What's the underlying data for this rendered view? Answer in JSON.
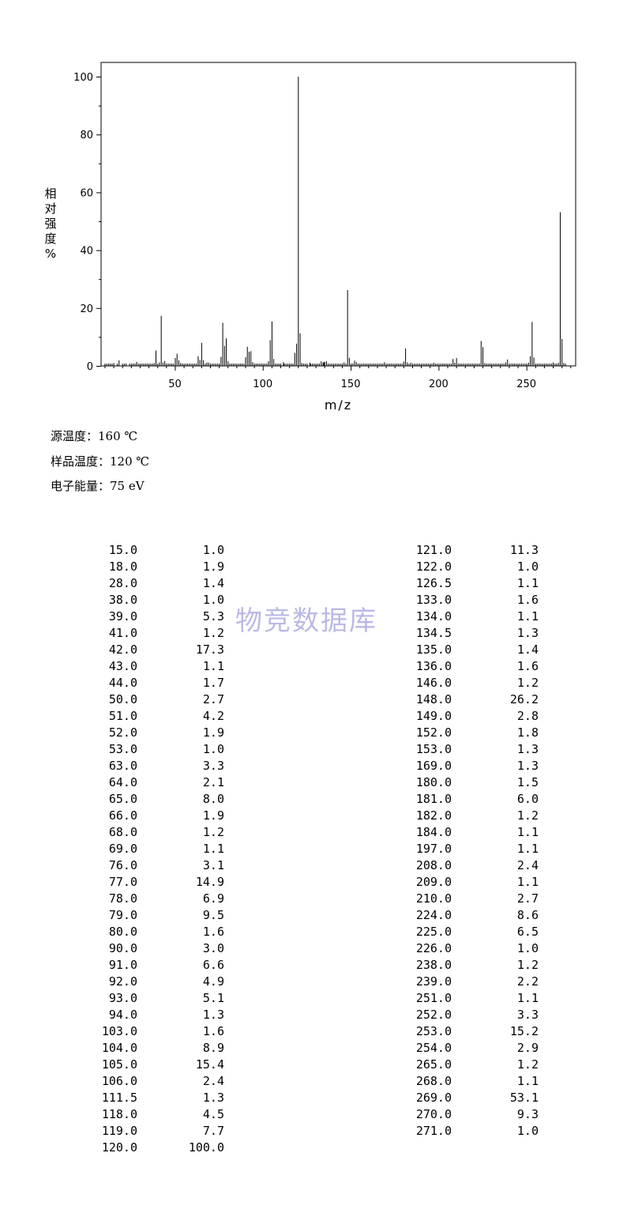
{
  "chart_data": {
    "type": "bar",
    "xlabel": "m/z",
    "ylabel": "相对强度%",
    "xlim": [
      8,
      278
    ],
    "ylim": [
      0,
      100
    ],
    "x_ticks": [
      50,
      100,
      150,
      200,
      250
    ],
    "y_ticks": [
      0,
      20,
      40,
      60,
      80,
      100
    ],
    "x_ticks_text": [
      "50",
      "100",
      "150",
      "200",
      "250"
    ],
    "y_ticks_text": [
      "0",
      "20",
      "40",
      "60",
      "80",
      "100"
    ],
    "grid": false,
    "peaks": [
      {
        "mz": 15.0,
        "abundance": 1.0
      },
      {
        "mz": 18.0,
        "abundance": 1.9
      },
      {
        "mz": 28.0,
        "abundance": 1.4
      },
      {
        "mz": 38.0,
        "abundance": 1.0
      },
      {
        "mz": 39.0,
        "abundance": 5.3
      },
      {
        "mz": 41.0,
        "abundance": 1.2
      },
      {
        "mz": 42.0,
        "abundance": 17.3
      },
      {
        "mz": 43.0,
        "abundance": 1.1
      },
      {
        "mz": 44.0,
        "abundance": 1.7
      },
      {
        "mz": 50.0,
        "abundance": 2.7
      },
      {
        "mz": 51.0,
        "abundance": 4.2
      },
      {
        "mz": 52.0,
        "abundance": 1.9
      },
      {
        "mz": 53.0,
        "abundance": 1.0
      },
      {
        "mz": 63.0,
        "abundance": 3.3
      },
      {
        "mz": 64.0,
        "abundance": 2.1
      },
      {
        "mz": 65.0,
        "abundance": 8.0
      },
      {
        "mz": 66.0,
        "abundance": 1.9
      },
      {
        "mz": 68.0,
        "abundance": 1.2
      },
      {
        "mz": 69.0,
        "abundance": 1.1
      },
      {
        "mz": 76.0,
        "abundance": 3.1
      },
      {
        "mz": 77.0,
        "abundance": 14.9
      },
      {
        "mz": 78.0,
        "abundance": 6.9
      },
      {
        "mz": 79.0,
        "abundance": 9.5
      },
      {
        "mz": 80.0,
        "abundance": 1.6
      },
      {
        "mz": 90.0,
        "abundance": 3.0
      },
      {
        "mz": 91.0,
        "abundance": 6.6
      },
      {
        "mz": 92.0,
        "abundance": 4.9
      },
      {
        "mz": 93.0,
        "abundance": 5.1
      },
      {
        "mz": 94.0,
        "abundance": 1.3
      },
      {
        "mz": 103.0,
        "abundance": 1.6
      },
      {
        "mz": 104.0,
        "abundance": 8.9
      },
      {
        "mz": 105.0,
        "abundance": 15.4
      },
      {
        "mz": 106.0,
        "abundance": 2.4
      },
      {
        "mz": 111.5,
        "abundance": 1.3
      },
      {
        "mz": 118.0,
        "abundance": 4.5
      },
      {
        "mz": 119.0,
        "abundance": 7.7
      },
      {
        "mz": 120.0,
        "abundance": 100.0
      },
      {
        "mz": 121.0,
        "abundance": 11.3
      },
      {
        "mz": 122.0,
        "abundance": 1.0
      },
      {
        "mz": 126.5,
        "abundance": 1.1
      },
      {
        "mz": 133.0,
        "abundance": 1.6
      },
      {
        "mz": 134.0,
        "abundance": 1.1
      },
      {
        "mz": 134.5,
        "abundance": 1.3
      },
      {
        "mz": 135.0,
        "abundance": 1.4
      },
      {
        "mz": 136.0,
        "abundance": 1.6
      },
      {
        "mz": 146.0,
        "abundance": 1.2
      },
      {
        "mz": 148.0,
        "abundance": 26.2
      },
      {
        "mz": 149.0,
        "abundance": 2.8
      },
      {
        "mz": 152.0,
        "abundance": 1.8
      },
      {
        "mz": 153.0,
        "abundance": 1.3
      },
      {
        "mz": 169.0,
        "abundance": 1.3
      },
      {
        "mz": 180.0,
        "abundance": 1.5
      },
      {
        "mz": 181.0,
        "abundance": 6.0
      },
      {
        "mz": 182.0,
        "abundance": 1.2
      },
      {
        "mz": 184.0,
        "abundance": 1.1
      },
      {
        "mz": 197.0,
        "abundance": 1.1
      },
      {
        "mz": 208.0,
        "abundance": 2.4
      },
      {
        "mz": 209.0,
        "abundance": 1.1
      },
      {
        "mz": 210.0,
        "abundance": 2.7
      },
      {
        "mz": 224.0,
        "abundance": 8.6
      },
      {
        "mz": 225.0,
        "abundance": 6.5
      },
      {
        "mz": 226.0,
        "abundance": 1.0
      },
      {
        "mz": 238.0,
        "abundance": 1.2
      },
      {
        "mz": 239.0,
        "abundance": 2.2
      },
      {
        "mz": 251.0,
        "abundance": 1.1
      },
      {
        "mz": 252.0,
        "abundance": 3.3
      },
      {
        "mz": 253.0,
        "abundance": 15.2
      },
      {
        "mz": 254.0,
        "abundance": 2.9
      },
      {
        "mz": 265.0,
        "abundance": 1.2
      },
      {
        "mz": 268.0,
        "abundance": 1.1
      },
      {
        "mz": 269.0,
        "abundance": 53.1
      },
      {
        "mz": 270.0,
        "abundance": 9.3
      },
      {
        "mz": 271.0,
        "abundance": 1.0
      }
    ],
    "minor_peaks_mz": [
      10,
      11,
      12,
      13,
      14,
      17,
      20,
      21,
      22,
      24,
      25,
      26,
      27,
      29,
      30,
      31,
      32,
      33,
      34,
      35,
      36,
      37,
      40,
      45,
      46,
      47,
      48,
      49,
      54,
      55,
      56,
      57,
      58,
      59,
      60,
      61,
      62,
      67,
      70,
      71,
      72,
      73,
      74,
      75,
      81,
      82,
      83,
      84,
      85,
      86,
      87,
      88,
      89,
      95,
      96,
      97,
      98,
      99,
      100,
      101,
      102,
      107,
      108,
      109,
      110,
      112,
      113,
      114,
      115,
      116,
      117,
      123,
      124,
      125,
      127,
      128,
      129,
      130,
      131,
      132,
      137,
      138,
      139,
      140,
      141,
      142,
      143,
      144,
      145,
      147,
      150,
      151,
      154,
      155,
      156,
      157,
      158,
      159,
      160,
      161,
      162,
      163,
      164,
      165,
      166,
      167,
      168,
      170,
      171,
      172,
      173,
      174,
      175,
      176,
      177,
      178,
      179,
      183,
      185,
      186,
      187,
      188,
      189,
      190,
      191,
      192,
      193,
      194,
      195,
      196,
      198,
      199,
      200,
      201,
      202,
      203,
      204,
      205,
      206,
      207,
      211,
      212,
      213,
      214,
      215,
      216,
      217,
      218,
      219,
      220,
      221,
      222,
      223,
      227,
      228,
      229,
      230,
      231,
      232,
      233,
      234,
      235,
      236,
      237,
      240,
      241,
      242,
      243,
      244,
      245,
      246,
      247,
      248,
      249,
      250,
      255,
      256,
      257,
      258,
      259,
      260,
      261,
      262,
      263,
      264,
      266,
      267,
      272
    ],
    "minor_peak_abundance": 0.8
  },
  "conditions": {
    "source_temp": "源温度：160 ℃",
    "sample_temp": "样品温度：120 ℃",
    "electron_energy": "电子能量：75 eV"
  },
  "table": {
    "left": [
      [
        "15.0",
        "1.0"
      ],
      [
        "18.0",
        "1.9"
      ],
      [
        "28.0",
        "1.4"
      ],
      [
        "38.0",
        "1.0"
      ],
      [
        "39.0",
        "5.3"
      ],
      [
        "41.0",
        "1.2"
      ],
      [
        "42.0",
        "17.3"
      ],
      [
        "43.0",
        "1.1"
      ],
      [
        "44.0",
        "1.7"
      ],
      [
        "50.0",
        "2.7"
      ],
      [
        "51.0",
        "4.2"
      ],
      [
        "52.0",
        "1.9"
      ],
      [
        "53.0",
        "1.0"
      ],
      [
        "63.0",
        "3.3"
      ],
      [
        "64.0",
        "2.1"
      ],
      [
        "65.0",
        "8.0"
      ],
      [
        "66.0",
        "1.9"
      ],
      [
        "68.0",
        "1.2"
      ],
      [
        "69.0",
        "1.1"
      ],
      [
        "76.0",
        "3.1"
      ],
      [
        "77.0",
        "14.9"
      ],
      [
        "78.0",
        "6.9"
      ],
      [
        "79.0",
        "9.5"
      ],
      [
        "80.0",
        "1.6"
      ],
      [
        "90.0",
        "3.0"
      ],
      [
        "91.0",
        "6.6"
      ],
      [
        "92.0",
        "4.9"
      ],
      [
        "93.0",
        "5.1"
      ],
      [
        "94.0",
        "1.3"
      ],
      [
        "103.0",
        "1.6"
      ],
      [
        "104.0",
        "8.9"
      ],
      [
        "105.0",
        "15.4"
      ],
      [
        "106.0",
        "2.4"
      ],
      [
        "111.5",
        "1.3"
      ],
      [
        "118.0",
        "4.5"
      ],
      [
        "119.0",
        "7.7"
      ],
      [
        "120.0",
        "100.0"
      ]
    ],
    "right": [
      [
        "121.0",
        "11.3"
      ],
      [
        "122.0",
        "1.0"
      ],
      [
        "126.5",
        "1.1"
      ],
      [
        "133.0",
        "1.6"
      ],
      [
        "134.0",
        "1.1"
      ],
      [
        "134.5",
        "1.3"
      ],
      [
        "135.0",
        "1.4"
      ],
      [
        "136.0",
        "1.6"
      ],
      [
        "146.0",
        "1.2"
      ],
      [
        "148.0",
        "26.2"
      ],
      [
        "149.0",
        "2.8"
      ],
      [
        "152.0",
        "1.8"
      ],
      [
        "153.0",
        "1.3"
      ],
      [
        "169.0",
        "1.3"
      ],
      [
        "180.0",
        "1.5"
      ],
      [
        "181.0",
        "6.0"
      ],
      [
        "182.0",
        "1.2"
      ],
      [
        "184.0",
        "1.1"
      ],
      [
        "197.0",
        "1.1"
      ],
      [
        "208.0",
        "2.4"
      ],
      [
        "209.0",
        "1.1"
      ],
      [
        "210.0",
        "2.7"
      ],
      [
        "224.0",
        "8.6"
      ],
      [
        "225.0",
        "6.5"
      ],
      [
        "226.0",
        "1.0"
      ],
      [
        "238.0",
        "1.2"
      ],
      [
        "239.0",
        "2.2"
      ],
      [
        "251.0",
        "1.1"
      ],
      [
        "252.0",
        "3.3"
      ],
      [
        "253.0",
        "15.2"
      ],
      [
        "254.0",
        "2.9"
      ],
      [
        "265.0",
        "1.2"
      ],
      [
        "268.0",
        "1.1"
      ],
      [
        "269.0",
        "53.1"
      ],
      [
        "270.0",
        "9.3"
      ],
      [
        "271.0",
        "1.0"
      ]
    ]
  },
  "watermark": "物竞数据库"
}
